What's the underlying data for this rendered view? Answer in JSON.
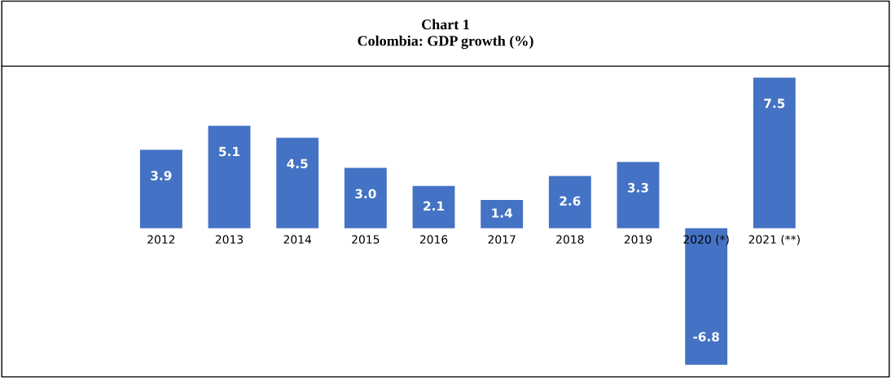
{
  "chart_data": {
    "type": "bar",
    "title": "Chart 1\nColombia: GDP growth (%)",
    "categories": [
      "2012",
      "2013",
      "2014",
      "2015",
      "2016",
      "2017",
      "2018",
      "2019",
      "2020 (*)",
      "2021 (**)"
    ],
    "values": [
      3.9,
      5.1,
      4.5,
      3.0,
      2.1,
      1.4,
      2.6,
      3.3,
      -6.8,
      7.5
    ],
    "value_labels": [
      "3.9",
      "5.1",
      "4.5",
      "3.0",
      "2.1",
      "1.4",
      "2.6",
      "3.3",
      "-6.8",
      "7.5"
    ],
    "color": "#4472c4",
    "tick_labels": "x",
    "grid": false,
    "legend": false
  }
}
